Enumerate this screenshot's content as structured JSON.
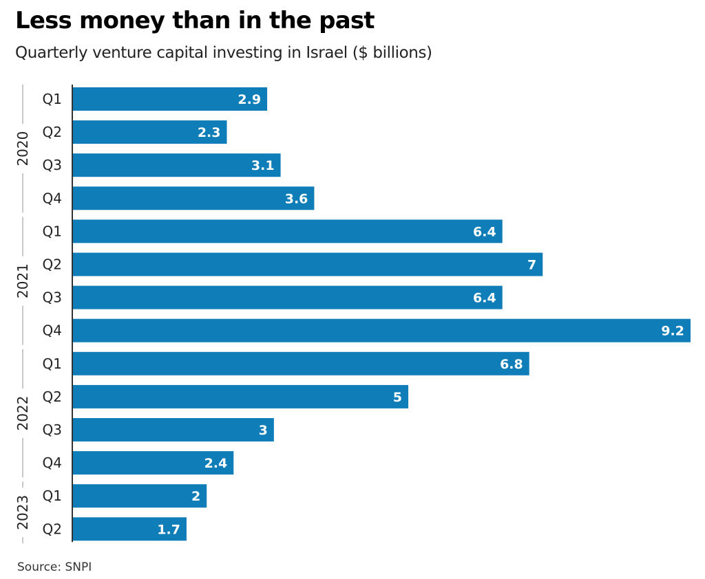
{
  "header": {
    "title": "Less money than in the past",
    "subtitle": "Quarterly venture capital investing in Israel ($ billions)"
  },
  "footer": {
    "source": "Source: SNPI"
  },
  "colors": {
    "bar": "#0f7db7",
    "axis": "#333333",
    "group_line": "#c8c8c8",
    "value_text": "#ffffff"
  },
  "chart_data": {
    "type": "bar",
    "orientation": "horizontal",
    "title": "Less money than in the past",
    "subtitle": "Quarterly venture capital investing in Israel ($ billions)",
    "xlabel": "",
    "ylabel": "",
    "xlim": [
      0,
      9.2
    ],
    "grid": false,
    "legend": "none",
    "groups": [
      {
        "year": "2020",
        "quarters": [
          "Q1",
          "Q2",
          "Q3",
          "Q4"
        ],
        "values": [
          2.9,
          2.3,
          3.1,
          3.6
        ]
      },
      {
        "year": "2021",
        "quarters": [
          "Q1",
          "Q2",
          "Q3",
          "Q4"
        ],
        "values": [
          6.4,
          7,
          6.4,
          9.2
        ]
      },
      {
        "year": "2022",
        "quarters": [
          "Q1",
          "Q2",
          "Q3",
          "Q4"
        ],
        "values": [
          6.8,
          5,
          3,
          2.4
        ]
      },
      {
        "year": "2023",
        "quarters": [
          "Q1",
          "Q2"
        ],
        "values": [
          2,
          1.7
        ]
      }
    ],
    "categories": [
      "2020 Q1",
      "2020 Q2",
      "2020 Q3",
      "2020 Q4",
      "2021 Q1",
      "2021 Q2",
      "2021 Q3",
      "2021 Q4",
      "2022 Q1",
      "2022 Q2",
      "2022 Q3",
      "2022 Q4",
      "2023 Q1",
      "2023 Q2"
    ],
    "values": [
      2.9,
      2.3,
      3.1,
      3.6,
      6.4,
      7,
      6.4,
      9.2,
      6.8,
      5,
      3,
      2.4,
      2,
      1.7
    ],
    "data_labels": [
      "2.9",
      "2.3",
      "3.1",
      "3.6",
      "6.4",
      "7",
      "6.4",
      "9.2",
      "6.8",
      "5",
      "3",
      "2.4",
      "2",
      "1.7"
    ],
    "source": "Source: SNPI"
  }
}
